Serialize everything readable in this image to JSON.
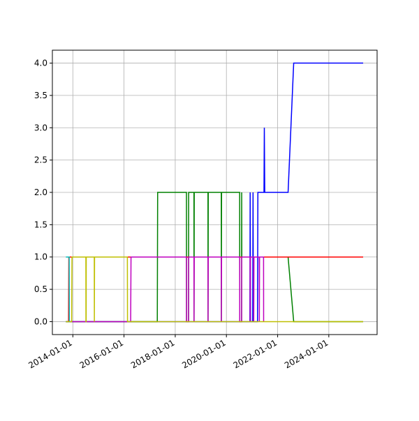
{
  "chart_data": {
    "type": "line",
    "grid": true,
    "xlim": [
      "2013-03-15",
      "2025-11-20"
    ],
    "xticks": [
      "2014-01-01",
      "2016-01-01",
      "2018-01-01",
      "2020-01-01",
      "2022-01-01",
      "2024-01-01"
    ],
    "ylim": [
      -0.2,
      4.2
    ],
    "yticks": [
      {
        "value": 0,
        "label": "0.0"
      },
      {
        "value": 0.5,
        "label": "0.5"
      },
      {
        "value": 1,
        "label": "1.0"
      },
      {
        "value": 1.5,
        "label": "1.5"
      },
      {
        "value": 2,
        "label": "2.0"
      },
      {
        "value": 2.5,
        "label": "2.5"
      },
      {
        "value": 3,
        "label": "3.0"
      },
      {
        "value": 3.5,
        "label": "3.5"
      },
      {
        "value": 4,
        "label": "4.0"
      }
    ],
    "series": [
      {
        "color": "#0000ff",
        "x": [
          "2013-09-24",
          "2020-12-01",
          "2020-12-05",
          "2020-12-10",
          "2021-01-10",
          "2021-01-15",
          "2021-01-20",
          "2021-03-20",
          "2021-03-25",
          "2021-06-20",
          "2021-06-25",
          "2021-07-01",
          "2022-05-30",
          "2022-08-18",
          "2025-05-05"
        ],
        "values": [
          0,
          0,
          2,
          0,
          0,
          2,
          0,
          0,
          2,
          2,
          3,
          2,
          2,
          4,
          4
        ]
      },
      {
        "color": "#008000",
        "x": [
          "2013-09-24",
          "2017-04-20",
          "2017-04-25",
          "2018-06-10",
          "2018-06-11",
          "2018-07-10",
          "2018-07-11",
          "2018-09-25",
          "2018-09-26",
          "2018-09-29",
          "2019-04-13",
          "2019-04-14",
          "2019-04-17",
          "2019-10-20",
          "2019-10-21",
          "2019-10-24",
          "2020-07-08",
          "2020-07-09",
          "2020-08-05",
          "2020-08-06",
          "2020-08-08",
          "2022-05-30",
          "2022-08-18",
          "2025-05-05"
        ],
        "values": [
          0,
          0,
          2,
          2,
          0,
          0,
          2,
          2,
          0,
          2,
          2,
          0,
          2,
          2,
          0,
          2,
          2,
          0,
          0,
          2,
          1,
          1,
          0,
          0
        ]
      },
      {
        "color": "#ff0000",
        "x": [
          "2013-11-01",
          "2013-11-05",
          "2025-05-05"
        ],
        "values": [
          0,
          1,
          1
        ]
      },
      {
        "color": "#00bfbf",
        "x": [
          "2013-09-24",
          "2013-11-10",
          "2013-11-12",
          "2013-12-01"
        ],
        "values": [
          1,
          1,
          0,
          0
        ]
      },
      {
        "color": "#bf00bf",
        "x": [
          "2013-11-20",
          "2016-04-05",
          "2016-04-10",
          "2018-06-10",
          "2018-06-11",
          "2018-07-10",
          "2018-07-11",
          "2018-09-25",
          "2018-09-26",
          "2018-09-29",
          "2019-04-13",
          "2019-04-14",
          "2019-04-17",
          "2019-10-20",
          "2019-10-21",
          "2019-10-24",
          "2020-07-08",
          "2020-07-09",
          "2020-08-05",
          "2020-08-06",
          "2020-12-04",
          "2020-12-05",
          "2020-12-08",
          "2021-01-24",
          "2021-01-25",
          "2021-01-28",
          "2021-04-14",
          "2021-04-15",
          "2021-04-18",
          "2021-06-14",
          "2021-06-15"
        ],
        "values": [
          0,
          0,
          1,
          1,
          0,
          0,
          1,
          1,
          0,
          1,
          1,
          0,
          1,
          1,
          0,
          1,
          1,
          0,
          0,
          1,
          1,
          0,
          1,
          1,
          0,
          1,
          1,
          0,
          1,
          1,
          0
        ]
      },
      {
        "color": "#bfbf00",
        "x": [
          "2013-09-24",
          "2013-12-15",
          "2013-12-20",
          "2014-07-06",
          "2014-07-07",
          "2014-07-10",
          "2014-07-11",
          "2014-11-03",
          "2014-11-04",
          "2014-11-07",
          "2016-02-18",
          "2016-02-20",
          "2025-05-05"
        ],
        "values": [
          0,
          0,
          1,
          1,
          0,
          0,
          1,
          1,
          0,
          1,
          1,
          0,
          0
        ]
      }
    ]
  }
}
